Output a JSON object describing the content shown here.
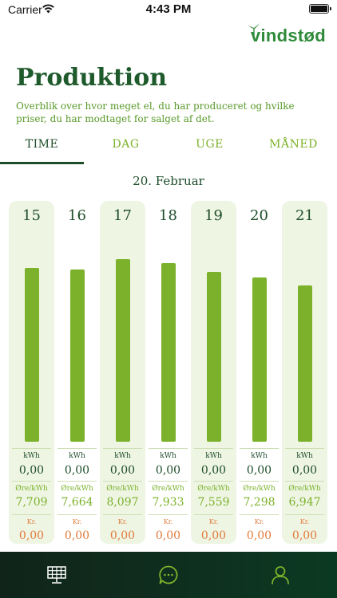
{
  "status_bar": {
    "carrier": "Carrier",
    "time": "4:43 PM"
  },
  "brand": {
    "logo_text": "vindstød",
    "color": "#2f8a3a"
  },
  "header": {
    "title": "Produktion",
    "subtitle": "Overblik over hvor meget el, du har produceret og hvilke priser, du har modtaget for salget af det."
  },
  "tabs": [
    {
      "label": "TIME",
      "active": true
    },
    {
      "label": "DAG",
      "active": false
    },
    {
      "label": "UGE",
      "active": false
    },
    {
      "label": "MÅNED",
      "active": false
    }
  ],
  "date": "20. Februar",
  "units": {
    "kwh": "kWh",
    "price": "Øre/kWh",
    "kr": "Kr."
  },
  "columns": [
    {
      "hour": "15",
      "kwh": "0,00",
      "price": "7,709",
      "kr": "0,00",
      "shaded": true
    },
    {
      "hour": "16",
      "kwh": "0,00",
      "price": "7,664",
      "kr": "0,00",
      "shaded": false
    },
    {
      "hour": "17",
      "kwh": "0,00",
      "price": "8,097",
      "kr": "0,00",
      "shaded": true
    },
    {
      "hour": "18",
      "kwh": "0,00",
      "price": "7,933",
      "kr": "0,00",
      "shaded": false
    },
    {
      "hour": "19",
      "kwh": "0,00",
      "price": "7,559",
      "kr": "0,00",
      "shaded": true
    },
    {
      "hour": "20",
      "kwh": "0,00",
      "price": "7,298",
      "kr": "0,00",
      "shaded": false
    },
    {
      "hour": "21",
      "kwh": "0,00",
      "price": "6,947",
      "kr": "0,00",
      "shaded": true
    }
  ],
  "colors": {
    "bar": "#7cb22b",
    "accent_dark": "#1e4d2a",
    "kr_orange": "#e07a3a",
    "column_shade": "#eef5e3",
    "nav_icon": "#7cb22b"
  },
  "bottom_nav": [
    {
      "icon": "solar-panel-icon",
      "label": "Produktion"
    },
    {
      "icon": "chat-bubble-icon",
      "label": "Beskeder"
    },
    {
      "icon": "user-profile-icon",
      "label": "Profil"
    }
  ]
}
